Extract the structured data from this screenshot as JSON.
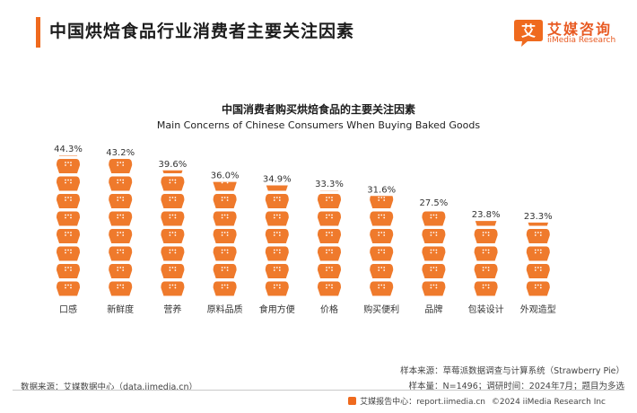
{
  "header": {
    "title": "中国烘焙食品行业消费者主要关注因素"
  },
  "logo": {
    "mark_text": "艾",
    "name_cn": "艾媒咨询",
    "name_en": "iiMedia Research"
  },
  "colors": {
    "accent": "#ef6a1e",
    "icon": "#ef7a2c"
  },
  "chart_data": {
    "type": "bar",
    "title": "中国消费者购买烘焙食品的主要关注因素",
    "subtitle": "Main Concerns of Chinese Consumers When Buying Baked Goods",
    "categories": [
      "口感",
      "新鲜度",
      "营养",
      "原料品质",
      "食用方便",
      "价格",
      "购买便利",
      "品牌",
      "包装设计",
      "外观造型"
    ],
    "values": [
      44.3,
      43.2,
      39.6,
      36.0,
      34.9,
      33.3,
      31.6,
      27.5,
      23.8,
      23.3
    ],
    "value_labels": [
      "44.3%",
      "43.2%",
      "39.6%",
      "36.0%",
      "34.9%",
      "33.3%",
      "31.6%",
      "27.5%",
      "23.8%",
      "23.3%"
    ],
    "unit": "%",
    "ylim": [
      0,
      44.3
    ],
    "grid": false,
    "legend": "none"
  },
  "notes": {
    "source": "数据来源：艾媒数据中心（data.iimedia.cn）",
    "sample_source": "样本来源：草莓派数据调查与计算系统（Strawberry Pie）",
    "sample_info": "样本量：N=1496；调研时间：2024年7月；题目为多选"
  },
  "footer": {
    "report_center": "艾媒报告中心：report.iimedia.cn",
    "copyright": "©2024 iiMedia Research  Inc"
  }
}
